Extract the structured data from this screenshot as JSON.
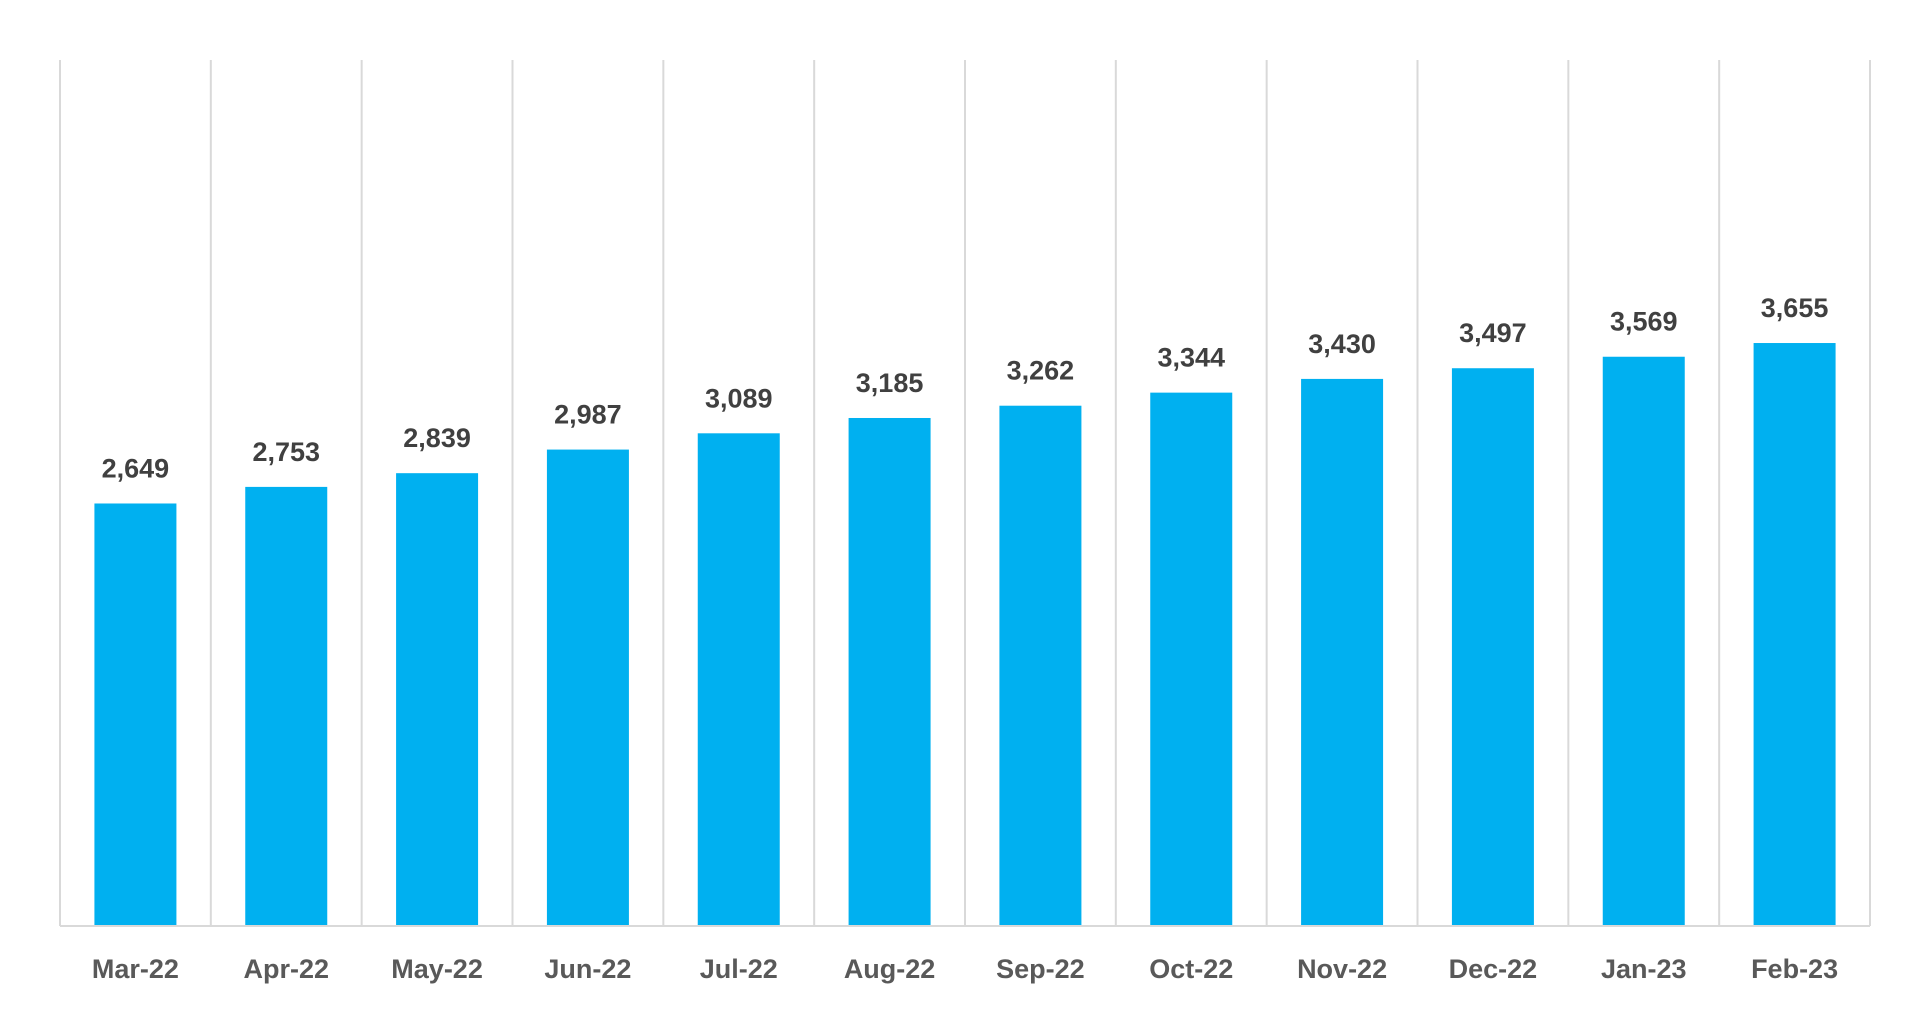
{
  "chart_data": {
    "type": "bar",
    "title": "",
    "xlabel": "",
    "ylabel": "",
    "categories": [
      "Mar-22",
      "Apr-22",
      "May-22",
      "Jun-22",
      "Jul-22",
      "Aug-22",
      "Sep-22",
      "Oct-22",
      "Nov-22",
      "Dec-22",
      "Jan-23",
      "Feb-23"
    ],
    "values": [
      2649,
      2753,
      2839,
      2987,
      3089,
      3185,
      3262,
      3344,
      3430,
      3497,
      3569,
      3655
    ],
    "value_labels": [
      "2,649",
      "2,753",
      "2,839",
      "2,987",
      "3,089",
      "3,185",
      "3,262",
      "3,344",
      "3,430",
      "3,497",
      "3,569",
      "3,655"
    ],
    "ylim": [
      0,
      4000
    ],
    "grid": "vertical category separators",
    "legend": "none",
    "colors": {
      "bar": "#00b0f0",
      "gridline": "#d9d9d9",
      "data_label": "#404040",
      "tick_label": "#595959"
    }
  }
}
